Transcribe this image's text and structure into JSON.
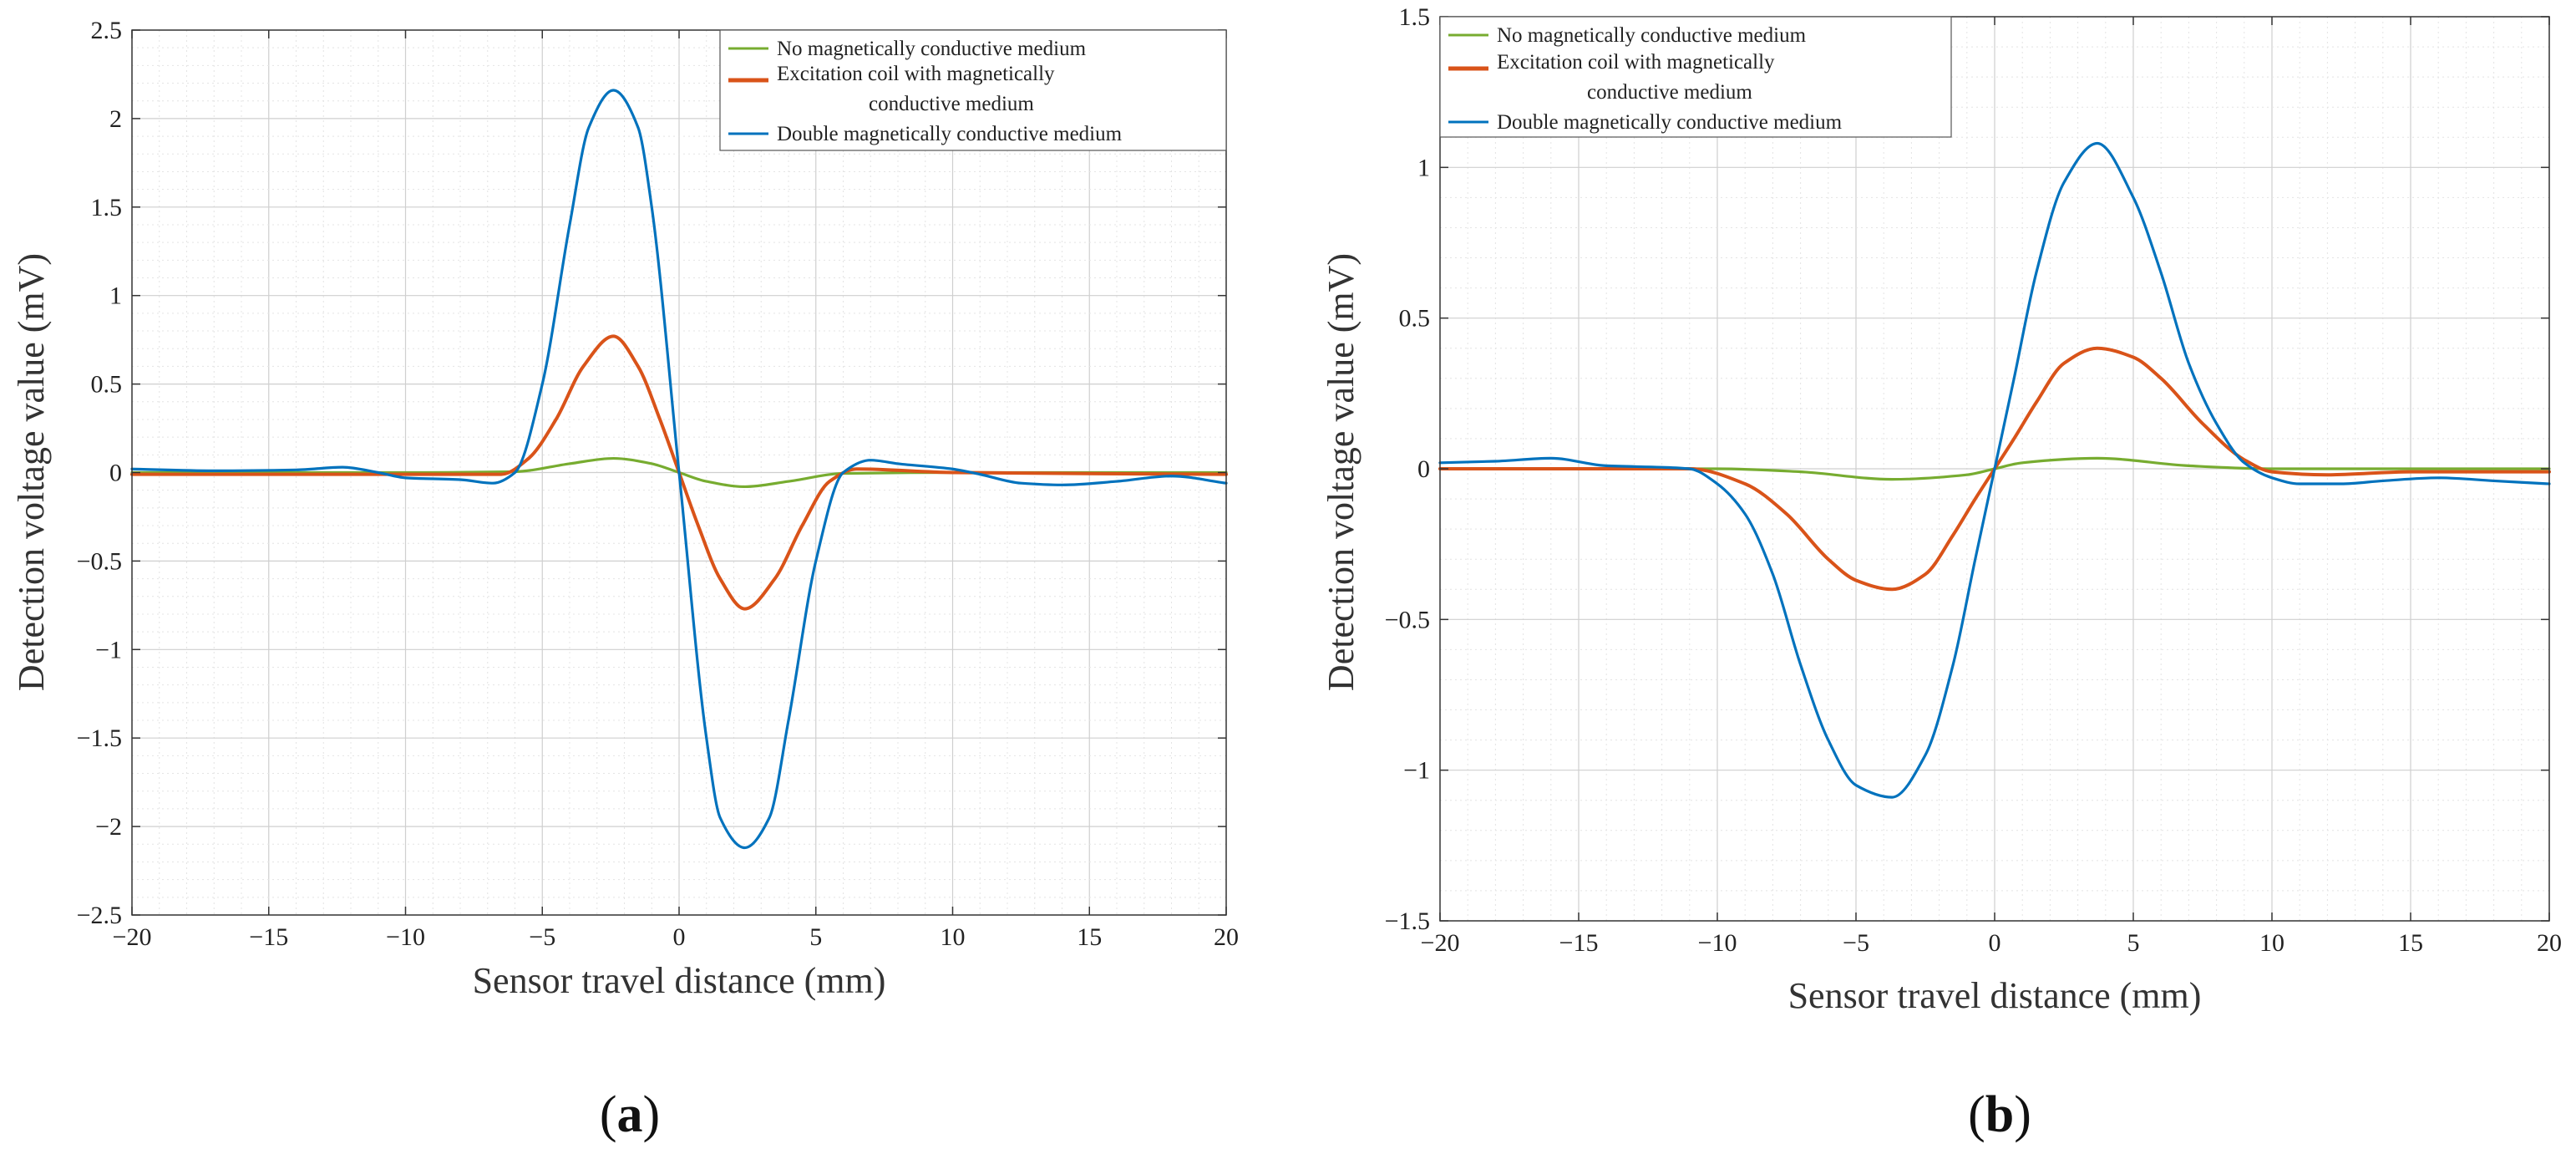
{
  "chart_data": [
    {
      "type": "line",
      "panel_label": "a",
      "xlabel": "Sensor travel distance (mm)",
      "ylabel": "Detection voltage value (mV)",
      "xlim": [
        -20,
        20
      ],
      "ylim": [
        -2.5,
        2.5
      ],
      "xticks": [
        -20,
        -15,
        -10,
        -5,
        0,
        5,
        10,
        15,
        20
      ],
      "xtick_labels": [
        "−20",
        "−15",
        "−10",
        "−5",
        "0",
        "5",
        "10",
        "15",
        "20"
      ],
      "yticks": [
        -2.5,
        -2,
        -1.5,
        -1,
        -0.5,
        0,
        0.5,
        1,
        1.5,
        2,
        2.5
      ],
      "ytick_labels": [
        "−2.5",
        "−2",
        "−1.5",
        "−1",
        "−0.5",
        "0",
        "0.5",
        "1",
        "1.5",
        "2",
        "2.5"
      ],
      "grid": true,
      "legend_position": "top-right",
      "series": [
        {
          "name": "No magnetically conductive medium",
          "legend_lines": [
            "No magnetically conductive medium"
          ],
          "color": "#77AC30",
          "x": [
            -20,
            -10,
            -6,
            -4,
            -2.4,
            -1,
            0,
            1,
            2.4,
            4,
            6,
            10,
            20
          ],
          "y": [
            0,
            0,
            0.005,
            0.05,
            0.08,
            0.05,
            0,
            -0.05,
            -0.08,
            -0.05,
            -0.005,
            0,
            0
          ]
        },
        {
          "name": "Excitation coil with magnetically conductive medium",
          "legend_lines": [
            "Excitation coil with magnetically",
            "conductive medium"
          ],
          "color": "#D95319",
          "x": [
            -20,
            -10,
            -6.5,
            -5.5,
            -4.5,
            -3.5,
            -2.4,
            -1.5,
            -0.7,
            0,
            0.7,
            1.5,
            2.4,
            3.5,
            4.5,
            5.5,
            6.5,
            10,
            20
          ],
          "y": [
            -0.01,
            -0.01,
            -0.01,
            0.08,
            0.3,
            0.6,
            0.77,
            0.6,
            0.3,
            0,
            -0.3,
            -0.6,
            -0.77,
            -0.6,
            -0.3,
            -0.05,
            0.02,
            0,
            -0.01
          ]
        },
        {
          "name": "Double magnetically conductive medium",
          "legend_lines": [
            "Double magnetically conductive medium"
          ],
          "color": "#0072BD",
          "x": [
            -20,
            -17,
            -14,
            -12.3,
            -11,
            -10,
            -8,
            -6.8,
            -6,
            -5,
            -4,
            -3.3,
            -2.4,
            -1.5,
            -1,
            0,
            1,
            1.5,
            2.4,
            3.3,
            4,
            5,
            6,
            7,
            8,
            10,
            11,
            12.5,
            14,
            16,
            18,
            20
          ],
          "y": [
            0.02,
            0.01,
            0.015,
            0.03,
            0,
            -0.03,
            -0.04,
            -0.06,
            0,
            0.5,
            1.4,
            1.95,
            2.16,
            1.95,
            1.5,
            0,
            -1.5,
            -1.95,
            -2.12,
            -1.95,
            -1.4,
            -0.5,
            0,
            0.07,
            0.05,
            0.02,
            -0.01,
            -0.06,
            -0.07,
            -0.05,
            -0.02,
            -0.06
          ]
        }
      ]
    },
    {
      "type": "line",
      "panel_label": "b",
      "xlabel": "Sensor travel distance (mm)",
      "ylabel": "Detection voltage value (mV)",
      "xlim": [
        -20,
        20
      ],
      "ylim": [
        -1.5,
        1.5
      ],
      "xticks": [
        -20,
        -15,
        -10,
        -5,
        0,
        5,
        10,
        15,
        20
      ],
      "xtick_labels": [
        "−20",
        "−15",
        "−10",
        "−5",
        "0",
        "5",
        "10",
        "15",
        "20"
      ],
      "yticks": [
        -1.5,
        -1,
        -0.5,
        0,
        0.5,
        1,
        1.5
      ],
      "ytick_labels": [
        "−1.5",
        "−1",
        "−0.5",
        "0",
        "0.5",
        "1",
        "1.5"
      ],
      "grid": true,
      "legend_position": "top-left",
      "series": [
        {
          "name": "No magnetically conductive medium",
          "legend_lines": [
            "No magnetically conductive medium"
          ],
          "color": "#77AC30",
          "x": [
            -20,
            -10,
            -7,
            -3.7,
            -1,
            0,
            1,
            3.7,
            7,
            10,
            20
          ],
          "y": [
            0,
            0,
            -0.01,
            -0.035,
            -0.02,
            0,
            0.02,
            0.035,
            0.01,
            0,
            0
          ]
        },
        {
          "name": "Excitation coil with magnetically conductive medium",
          "legend_lines": [
            "Excitation coil with magnetically",
            "conductive medium"
          ],
          "color": "#D95319",
          "x": [
            -20,
            -11,
            -9,
            -7.5,
            -6,
            -5,
            -3.7,
            -2.5,
            -1.5,
            -0.7,
            0,
            0.7,
            1.5,
            2.5,
            3.7,
            5,
            6,
            7.5,
            9,
            10,
            12,
            15,
            20
          ],
          "y": [
            0,
            0,
            -0.05,
            -0.15,
            -0.3,
            -0.37,
            -0.4,
            -0.35,
            -0.22,
            -0.1,
            0,
            0.1,
            0.22,
            0.35,
            0.4,
            0.37,
            0.3,
            0.15,
            0.03,
            -0.01,
            -0.02,
            -0.01,
            -0.01
          ]
        },
        {
          "name": "Double magnetically conductive medium",
          "legend_lines": [
            "Double magnetically conductive medium"
          ],
          "color": "#0072BD",
          "x": [
            -20,
            -18,
            -16,
            -14,
            -12,
            -11,
            -10,
            -9,
            -8,
            -7,
            -6,
            -5,
            -3.7,
            -2.5,
            -1.5,
            -0.7,
            0,
            0.7,
            1.5,
            2.5,
            3.7,
            5,
            6,
            7,
            8,
            9,
            10,
            11,
            12.5,
            14,
            16,
            18,
            20
          ],
          "y": [
            0.02,
            0.025,
            0.035,
            0.01,
            0.005,
            0,
            -0.05,
            -0.15,
            -0.35,
            -0.65,
            -0.9,
            -1.05,
            -1.09,
            -0.95,
            -0.65,
            -0.3,
            0,
            0.3,
            0.65,
            0.95,
            1.08,
            0.9,
            0.65,
            0.35,
            0.15,
            0.02,
            -0.03,
            -0.05,
            -0.05,
            -0.04,
            -0.03,
            -0.04,
            -0.05
          ]
        }
      ]
    }
  ]
}
